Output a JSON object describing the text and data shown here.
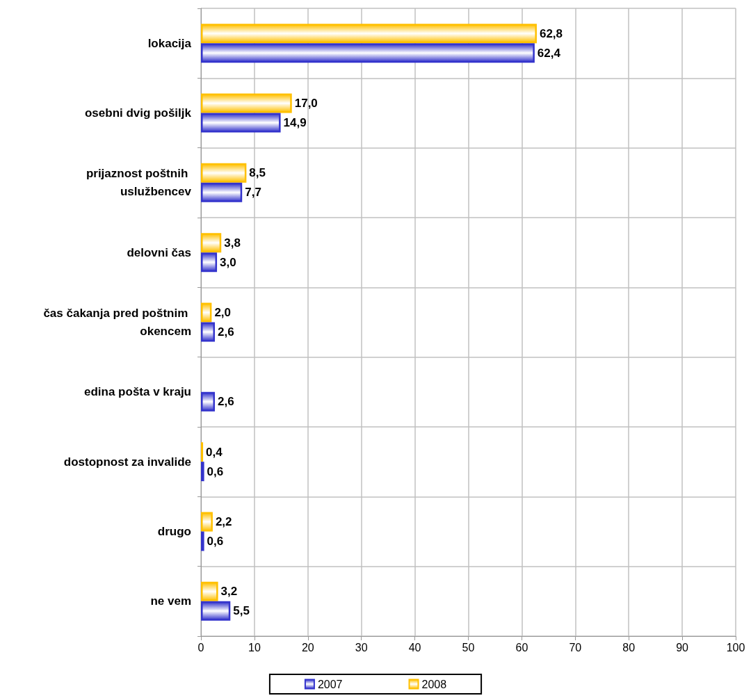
{
  "chart_data": {
    "type": "bar",
    "orientation": "horizontal",
    "categories": [
      "lokacija",
      "osebni dvig pošiljk",
      "prijaznost poštnih uslužbencev",
      "delovni čas",
      "čas čakanja pred poštnim okencem",
      "edina pošta v kraju",
      "dostopnost za invalide",
      "drugo",
      "ne vem"
    ],
    "series": [
      {
        "name": "2007",
        "color": "#3333cc",
        "values": [
          62.4,
          14.9,
          7.7,
          3.0,
          2.6,
          2.6,
          0.6,
          0.6,
          5.5
        ],
        "value_labels": [
          "62,4",
          "14,9",
          "7,7",
          "3,0",
          "2,6",
          "2,6",
          "0,6",
          "0,6",
          "5,5"
        ]
      },
      {
        "name": "2008",
        "color": "#ffc000",
        "values": [
          62.8,
          17.0,
          8.5,
          3.8,
          2.0,
          null,
          0.4,
          2.2,
          3.2
        ],
        "value_labels": [
          "62,8",
          "17,0",
          "8,5",
          "3,8",
          "2,0",
          null,
          "0,4",
          "2,2",
          "3,2"
        ]
      }
    ],
    "xlim": [
      0,
      100
    ],
    "xticks": [
      0,
      10,
      20,
      30,
      40,
      50,
      60,
      70,
      80,
      90,
      100
    ],
    "grid": true,
    "legend": "bottom"
  }
}
